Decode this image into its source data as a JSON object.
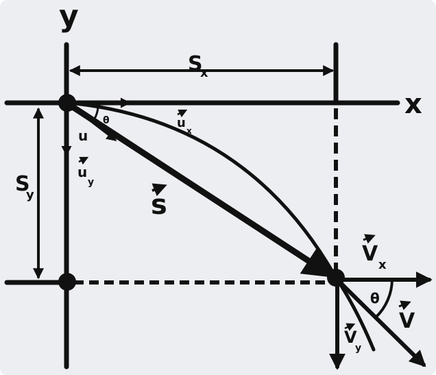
{
  "labels": {
    "y_axis": "y",
    "x_axis": "x",
    "sx": "S",
    "sx_sub": "x",
    "sy": "S",
    "sy_sub": "y",
    "theta_top": "θ",
    "u": "u",
    "ux": "u",
    "ux_sub": "x",
    "uy": "u",
    "uy_sub": "y",
    "s": "s",
    "vx": "V",
    "vx_sub": "x",
    "theta_bottom": "θ",
    "vy": "V",
    "vy_sub": "y",
    "v": "V"
  },
  "colors": {
    "background": "#edeef2",
    "ink": "#111111"
  }
}
